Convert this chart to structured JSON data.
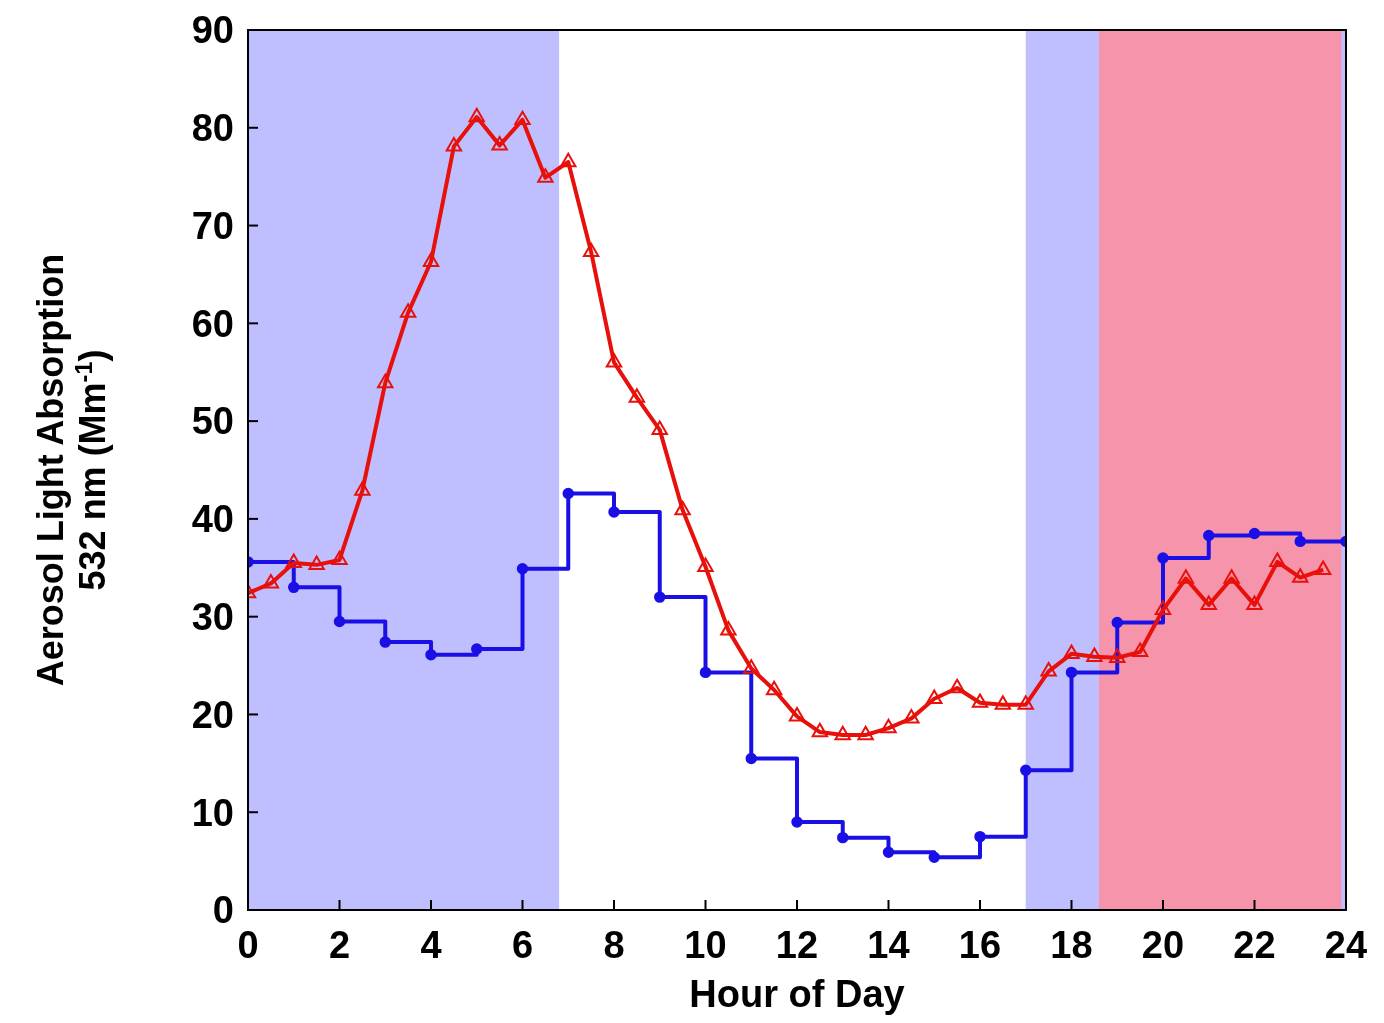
{
  "chart_data": {
    "type": "line",
    "xlabel": "Hour of Day",
    "ylabel": "Aerosol Light Absorption\n532 nm (Mm$^{-1}$)",
    "xlim": [
      0,
      24
    ],
    "ylim": [
      0,
      90
    ],
    "xticks": [
      0,
      2,
      4,
      6,
      8,
      10,
      12,
      14,
      16,
      18,
      20,
      22,
      24
    ],
    "yticks": [
      0,
      10,
      20,
      30,
      40,
      50,
      60,
      70,
      80,
      90
    ],
    "grid": false,
    "bands": [
      {
        "axis": "x",
        "from": 0,
        "to": 6.8,
        "color": "#b4b4ff"
      },
      {
        "axis": "x",
        "from": 17,
        "to": 24,
        "color": "#b4b4ff"
      },
      {
        "axis": "x",
        "from": 18.6,
        "to": 23.9,
        "color": "#ff8c9c"
      }
    ],
    "series": [
      {
        "type": "step",
        "color": "#1a10e6",
        "marker": "circle",
        "x": [
          0,
          1,
          2,
          3,
          4,
          5,
          6,
          7,
          8,
          9,
          10,
          11,
          12,
          13,
          14,
          15,
          16,
          17,
          18,
          19,
          20,
          21,
          22,
          23,
          24
        ],
        "values": [
          35.6,
          33.0,
          29.5,
          27.4,
          26.1,
          26.7,
          34.9,
          42.6,
          40.7,
          32.0,
          24.3,
          15.5,
          9.0,
          7.4,
          5.9,
          5.4,
          7.5,
          14.3,
          24.3,
          29.4,
          36.0,
          38.3,
          38.5,
          37.7,
          37.7
        ]
      },
      {
        "color": "#e8100a",
        "marker": "triangle",
        "x": [
          0,
          0.5,
          1,
          1.5,
          2,
          2.5,
          3,
          3.5,
          4,
          4.5,
          5,
          5.5,
          6,
          6.5,
          7,
          7.5,
          8,
          8.5,
          9,
          9.5,
          10,
          10.5,
          11,
          11.5,
          12,
          12.5,
          13,
          13.5,
          14,
          14.5,
          15,
          15.5,
          16,
          16.5,
          17,
          17.5,
          18,
          18.5,
          19,
          19.5,
          20,
          20.5,
          21,
          21.5,
          22,
          22.5,
          23,
          23.5
        ],
        "values": [
          32.4,
          33.4,
          35.5,
          35.3,
          35.8,
          42.9,
          53.9,
          61.1,
          66.3,
          78.1,
          81.1,
          78.2,
          80.8,
          74.9,
          76.5,
          67.3,
          56.0,
          52.4,
          49.1,
          40.9,
          35.1,
          28.6,
          24.7,
          22.5,
          19.8,
          18.2,
          17.9,
          17.9,
          18.6,
          19.6,
          21.6,
          22.7,
          21.2,
          21.0,
          21.0,
          24.4,
          26.2,
          25.9,
          25.8,
          26.4,
          30.7,
          33.9,
          31.2,
          33.9,
          31.2,
          35.6,
          34.0,
          34.8
        ]
      }
    ]
  }
}
